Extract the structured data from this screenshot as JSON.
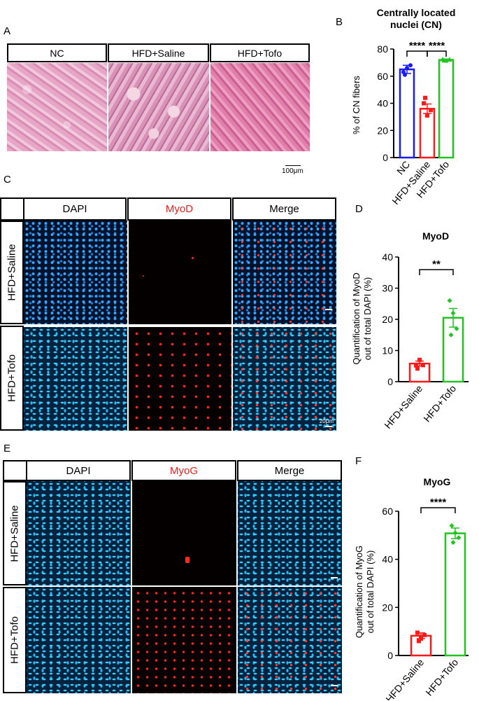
{
  "panels": {
    "A": {
      "label": "A",
      "headers": [
        "NC",
        "HFD+Saline",
        "HFD+Tofo"
      ],
      "scale_bar": "100μm"
    },
    "B": {
      "label": "B"
    },
    "C": {
      "label": "C",
      "headers": [
        "DAPI",
        "MyoD",
        "Merge"
      ],
      "rows": [
        "HFD+Saline",
        "HFD+Tofo"
      ],
      "scale_bar": "20μm"
    },
    "D": {
      "label": "D"
    },
    "E": {
      "label": "E",
      "headers": [
        "DAPI",
        "MyoG",
        "Merge"
      ],
      "rows": [
        "HFD+Saline",
        "HFD+Tofo"
      ]
    },
    "F": {
      "label": "F"
    }
  },
  "colors": {
    "NC": "#1a1aff",
    "HFD+Saline": "#ff1a1a",
    "HFD+Tofo": "#22c422",
    "red_header": "#e8201c"
  },
  "chart_data": [
    {
      "id": "B",
      "type": "bar",
      "title": "Centrally located nuclei (CN)",
      "title_lines": [
        "Centrally located",
        "nuclei (CN)"
      ],
      "ylabel": "% of CN fibers",
      "ylim": [
        0,
        80
      ],
      "yticks": [
        "0",
        "20",
        "40",
        "60",
        "80"
      ],
      "categories": [
        "NC",
        "HFD+Saline",
        "HFD+Tofo"
      ],
      "values": [
        65,
        36,
        72
      ],
      "errors": [
        3,
        3.5,
        0.6
      ],
      "points": [
        [
          63,
          66,
          68,
          61
        ],
        [
          40,
          31,
          35,
          44
        ],
        [
          72.5,
          71.5,
          72.3,
          71.7
        ]
      ],
      "significance": [
        {
          "from": 0,
          "to": 1,
          "label": "****"
        },
        {
          "from": 1,
          "to": 2,
          "label": "****"
        }
      ]
    },
    {
      "id": "D",
      "type": "bar",
      "title": "MyoD",
      "ylabel_lines": [
        "Quantification of MyoD",
        "out of total DAPI (%)"
      ],
      "ylim": [
        0,
        40
      ],
      "yticks": [
        "0",
        "10",
        "20",
        "30",
        "40"
      ],
      "categories": [
        "HFD+Saline",
        "HFD+Tofo"
      ],
      "values": [
        5.8,
        20.5
      ],
      "errors": [
        0.8,
        3.0
      ],
      "points": [
        [
          5.2,
          7.0,
          5.3,
          4.2
        ],
        [
          26,
          22,
          17,
          15
        ]
      ],
      "significance": [
        {
          "from": 0,
          "to": 1,
          "label": "**"
        }
      ]
    },
    {
      "id": "F",
      "type": "bar",
      "title": "MyoG",
      "ylabel_lines": [
        "Quantification of MyoG",
        "out of total DAPI (%)"
      ],
      "ylim": [
        0,
        60
      ],
      "yticks": [
        "0",
        "20",
        "40",
        "60"
      ],
      "categories": [
        "HFD+Saline",
        "HFD+Tofo"
      ],
      "values": [
        8.2,
        50.8
      ],
      "errors": [
        1.2,
        2.2
      ],
      "points": [
        [
          9.5,
          7.0,
          8.5,
          6.0
        ],
        [
          54,
          51,
          49,
          47
        ]
      ],
      "significance": [
        {
          "from": 0,
          "to": 1,
          "label": "****"
        }
      ]
    }
  ]
}
